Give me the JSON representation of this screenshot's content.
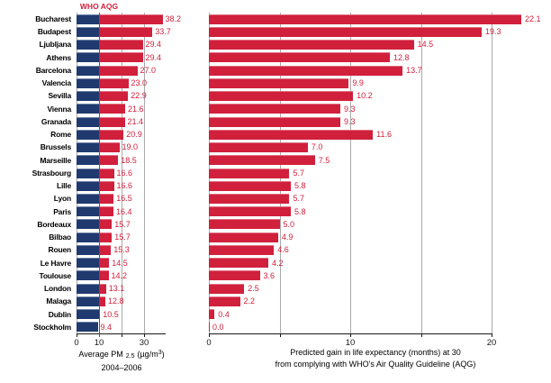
{
  "who_aqg": {
    "label": "WHO AQG",
    "value": 10
  },
  "colors": {
    "red": "#d0203c",
    "navy": "#203a70",
    "grid": "#a9a9a9",
    "axis": "#1a1a1a"
  },
  "chart_data": {
    "type": "bar",
    "orientation": "horizontal",
    "categories": [
      "Bucharest",
      "Budapest",
      "Ljubljana",
      "Athens",
      "Barcelona",
      "Valencia",
      "Sevilla",
      "Vienna",
      "Granada",
      "Rome",
      "Brussels",
      "Marseille",
      "Strasbourg",
      "Lille",
      "Lyon",
      "Paris",
      "Bordeaux",
      "Bilbao",
      "Rouen",
      "Le Havre",
      "Toulouse",
      "London",
      "Malaga",
      "Dublin",
      "Stockholm"
    ],
    "series": [
      {
        "name": "average_pm25",
        "title": "Average PM 2.5 (µg/m³), 2004–2006",
        "values": [
          38.2,
          33.7,
          29.4,
          29.4,
          27.0,
          23.0,
          22.9,
          21.6,
          21.4,
          20.9,
          19.0,
          18.5,
          16.6,
          16.6,
          16.5,
          16.4,
          15.7,
          15.7,
          15.3,
          14.5,
          14.2,
          13.1,
          12.8,
          10.5,
          9.4
        ],
        "xlim": [
          0,
          40
        ],
        "xticks": [
          0,
          10,
          20,
          30
        ],
        "xtick_labels": [
          "0",
          "10",
          "",
          "30"
        ],
        "gridlines_at": [
          0,
          20,
          30
        ],
        "guideline_value": 10,
        "bar_color_rule": "navy below WHO AQG (10), red above"
      },
      {
        "name": "life_expectancy_gain",
        "title": "Predicted gain in life expectancy (months) at 30 from complying with WHO's Air Quality Guideline (AQG)",
        "values": [
          22.1,
          19.3,
          14.5,
          12.8,
          13.7,
          9.9,
          10.2,
          9.3,
          9.3,
          11.6,
          7.0,
          7.5,
          5.7,
          5.8,
          5.7,
          5.8,
          5.0,
          4.9,
          4.6,
          4.2,
          3.6,
          2.5,
          2.2,
          0.4,
          0.0
        ],
        "xlim": [
          0,
          20
        ],
        "xticks": [
          0,
          5,
          10,
          15,
          20
        ],
        "xtick_labels": [
          "0",
          "",
          "10",
          "",
          "20"
        ],
        "gridlines_at": [
          0,
          5,
          10,
          15,
          20
        ]
      }
    ]
  },
  "captions": {
    "left": {
      "prefix": "Average PM",
      "sub": "2.5",
      "unit_open": "(µg/m",
      "sup": "3",
      "unit_close": ")",
      "line2": "2004–2006"
    },
    "right": {
      "line1": "Predicted gain in life expectancy (months) at 30",
      "line2": "from complying with WHO's Air Quality Guideline (AQG)"
    }
  }
}
